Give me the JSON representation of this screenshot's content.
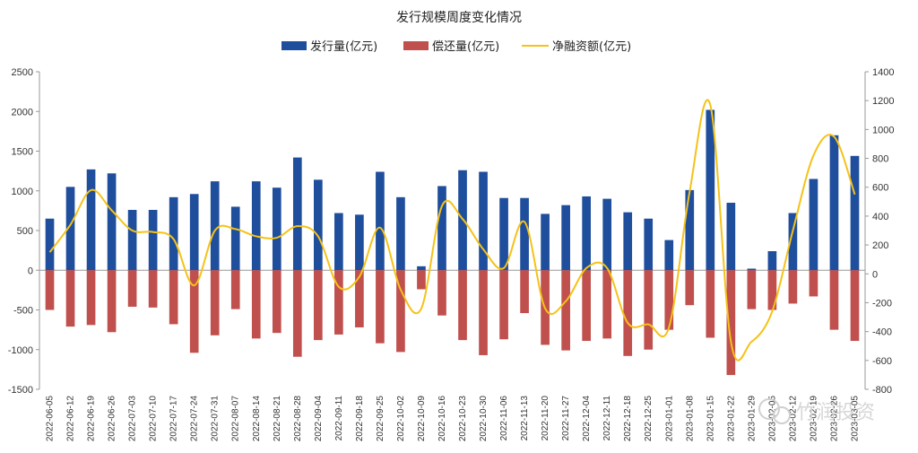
{
  "chart_data": {
    "type": "bar",
    "title": "发行规模周度变化情况",
    "categories": [
      "2022-06-05",
      "2022-06-12",
      "2022-06-19",
      "2022-06-26",
      "2022-07-03",
      "2022-07-10",
      "2022-07-17",
      "2022-07-24",
      "2022-07-31",
      "2022-08-07",
      "2022-08-14",
      "2022-08-21",
      "2022-08-28",
      "2022-09-04",
      "2022-09-11",
      "2022-09-18",
      "2022-09-25",
      "2022-10-02",
      "2022-10-09",
      "2022-10-16",
      "2022-10-23",
      "2022-10-30",
      "2022-11-06",
      "2022-11-13",
      "2022-11-20",
      "2022-11-27",
      "2022-12-04",
      "2022-12-11",
      "2022-12-18",
      "2022-12-25",
      "2023-01-01",
      "2023-01-08",
      "2023-01-15",
      "2023-01-22",
      "2023-01-29",
      "2023-02-05",
      "2023-02-12",
      "2023-02-19",
      "2023-02-26",
      "2023-03-05"
    ],
    "series": [
      {
        "name": "发行量(亿元)",
        "axis": "left",
        "kind": "bar",
        "color": "#1f4e9c",
        "values": [
          650,
          1050,
          1270,
          1220,
          760,
          760,
          920,
          960,
          1120,
          800,
          1120,
          1040,
          1420,
          1140,
          720,
          700,
          1240,
          920,
          50,
          1060,
          1260,
          1240,
          910,
          910,
          710,
          820,
          930,
          900,
          730,
          650,
          380,
          1010,
          2020,
          850,
          20,
          240,
          720,
          1150,
          1700,
          1440
        ]
      },
      {
        "name": "偿还量(亿元)",
        "axis": "left",
        "kind": "bar",
        "color": "#c0504d",
        "values": [
          -500,
          -710,
          -690,
          -780,
          -460,
          -470,
          -680,
          -1040,
          -820,
          -490,
          -860,
          -790,
          -1090,
          -880,
          -810,
          -720,
          -920,
          -1030,
          -240,
          -570,
          -880,
          -1070,
          -870,
          -540,
          -940,
          -1010,
          -890,
          -860,
          -1080,
          -1000,
          -750,
          -440,
          -850,
          -1320,
          -490,
          -500,
          -420,
          -330,
          -750,
          -890
        ]
      },
      {
        "name": "净融资额(亿元)",
        "axis": "right",
        "kind": "line",
        "color": "#f5c218",
        "values": [
          150,
          340,
          580,
          440,
          300,
          290,
          240,
          -80,
          300,
          310,
          260,
          250,
          330,
          260,
          -90,
          -20,
          320,
          -110,
          -240,
          470,
          380,
          170,
          40,
          360,
          -240,
          -190,
          40,
          40,
          -340,
          -350,
          -370,
          570,
          1170,
          -470,
          -470,
          -260,
          300,
          820,
          950,
          550
        ]
      }
    ],
    "yleft": {
      "min": -1500,
      "max": 2500,
      "ticks": [
        -1500,
        -1000,
        -500,
        0,
        500,
        1000,
        1500,
        2000,
        2500
      ]
    },
    "yright": {
      "min": -800,
      "max": 1400,
      "ticks": [
        -800,
        -600,
        -400,
        -200,
        0,
        200,
        400,
        600,
        800,
        1000,
        1200,
        1400
      ]
    },
    "legend_position": "top-center",
    "grid": false
  },
  "watermark": "竹润投资",
  "colors": {
    "bar_issue": "#1f4e9c",
    "bar_repay": "#c0504d",
    "line_net": "#f5c218",
    "axis": "#999999",
    "text": "#333333"
  }
}
